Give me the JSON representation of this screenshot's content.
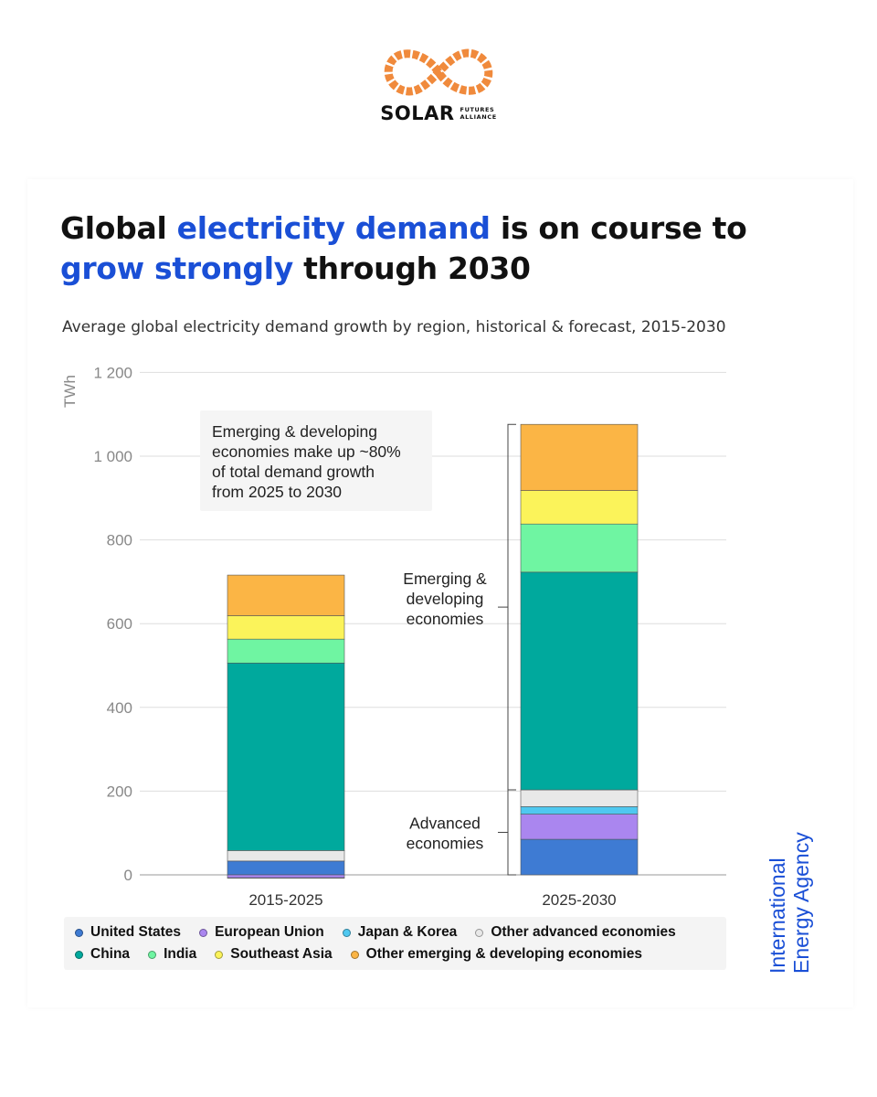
{
  "logo": {
    "name": "SOLAR",
    "sub_line1": "FUTURES",
    "sub_line2": "ALLIANCE",
    "color": "#f08a3c"
  },
  "headline": {
    "parts": [
      {
        "text": "Global ",
        "highlight": false
      },
      {
        "text": "electricity demand",
        "highlight": true
      },
      {
        "text": " is on course to ",
        "highlight": false
      },
      {
        "text": "grow strongly",
        "highlight": true
      },
      {
        "text": " through 2030",
        "highlight": false
      }
    ],
    "highlight_color": "#1a4fd6"
  },
  "subtitle": "Average global electricity demand growth by region, historical & forecast, 2015-2030",
  "chart_data": {
    "type": "bar",
    "stacked": true,
    "title": "Average global electricity demand growth by region, historical & forecast, 2015-2030",
    "ylabel": "TWh",
    "xlabel": "",
    "ylim": [
      0,
      1200
    ],
    "yticks": [
      0,
      200,
      400,
      600,
      800,
      1000,
      1200
    ],
    "ytick_labels": [
      "0",
      "200",
      "400",
      "600",
      "800",
      "1 000",
      "1 200"
    ],
    "categories": [
      "2015-2025",
      "2025-2030"
    ],
    "grid": true,
    "legend_position": "bottom",
    "series": [
      {
        "name": "United States",
        "color": "#3e7bd3",
        "values": [
          33,
          85
        ]
      },
      {
        "name": "European Union",
        "color": "#aa86ef",
        "values": [
          -7,
          60
        ]
      },
      {
        "name": "Japan & Korea",
        "color": "#4fc8f0",
        "values": [
          -1,
          18
        ]
      },
      {
        "name": "Other advanced economies",
        "color": "#e8e8e8",
        "values": [
          25,
          40
        ]
      },
      {
        "name": "China",
        "color": "#00a99d",
        "values": [
          448,
          520
        ]
      },
      {
        "name": "India",
        "color": "#6ff5a2",
        "values": [
          57,
          115
        ]
      },
      {
        "name": "Southeast Asia",
        "color": "#fbf35a",
        "values": [
          56,
          80
        ]
      },
      {
        "name": "Other emerging & developing economies",
        "color": "#fbb545",
        "values": [
          97,
          158
        ]
      }
    ],
    "annotations": [
      {
        "text": "Emerging & developing economies make up ~80% of total demand growth from 2025 to 2030"
      },
      {
        "text": "Emerging & developing economies",
        "bracket_from": 203,
        "bracket_to": 1076
      },
      {
        "text": "Advanced economies",
        "bracket_from": 0,
        "bracket_to": 203
      }
    ]
  },
  "annotation_box_lines": [
    "Emerging & developing",
    "economies make up ~80%",
    "of total demand growth",
    "from 2025 to 2030"
  ],
  "bracket_emerging_lines": [
    "Emerging &",
    "developing",
    "economies"
  ],
  "bracket_advanced_lines": [
    "Advanced",
    "economies"
  ],
  "source": {
    "line1": "International",
    "line2": "Energy Agency",
    "color": "#1a4fd6"
  }
}
